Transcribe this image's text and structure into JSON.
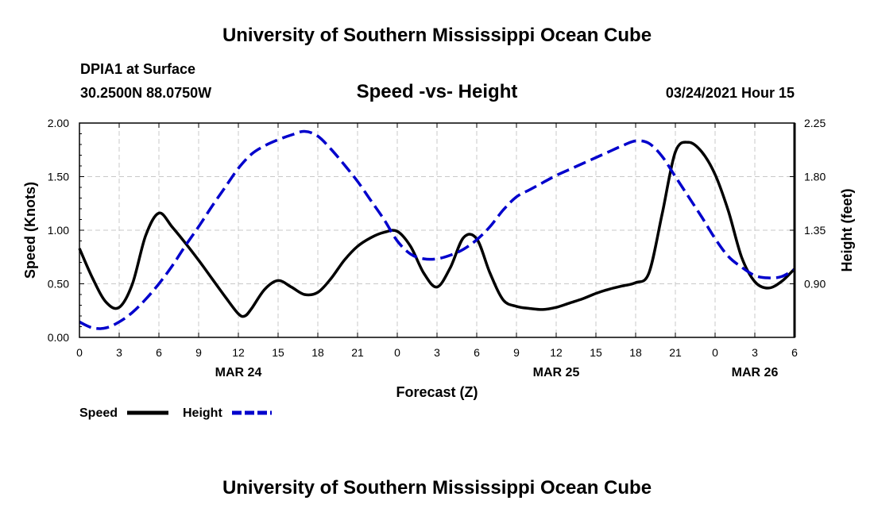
{
  "header": {
    "title": "University of Southern Mississippi Ocean Cube",
    "station": "DPIA1 at Surface",
    "coords": "30.2500N 88.0750W",
    "subtitle": "Speed -vs- Height",
    "datetime": "03/24/2021 Hour 15"
  },
  "footer": {
    "title": "University of Southern Mississippi Ocean Cube"
  },
  "colors": {
    "speed": "#000000",
    "height": "#0000cc",
    "grid": "#c8c8c8"
  },
  "chart_data": {
    "type": "line",
    "title": "Speed -vs- Height",
    "xlabel": "Forecast (Z)",
    "ylabel": "Speed (Knots)",
    "y2label": "Height (feet)",
    "x_range_hours": [
      0,
      54
    ],
    "x_ticks": [
      {
        "h": 0,
        "label": "0"
      },
      {
        "h": 3,
        "label": "3"
      },
      {
        "h": 6,
        "label": "6"
      },
      {
        "h": 9,
        "label": "9"
      },
      {
        "h": 12,
        "label": "12"
      },
      {
        "h": 15,
        "label": "15"
      },
      {
        "h": 18,
        "label": "18"
      },
      {
        "h": 21,
        "label": "21"
      },
      {
        "h": 24,
        "label": "0"
      },
      {
        "h": 27,
        "label": "3"
      },
      {
        "h": 30,
        "label": "6"
      },
      {
        "h": 33,
        "label": "9"
      },
      {
        "h": 36,
        "label": "12"
      },
      {
        "h": 39,
        "label": "15"
      },
      {
        "h": 42,
        "label": "18"
      },
      {
        "h": 45,
        "label": "21"
      },
      {
        "h": 48,
        "label": "0"
      },
      {
        "h": 51,
        "label": "3"
      },
      {
        "h": 54,
        "label": "6"
      }
    ],
    "date_labels": [
      {
        "h": 12,
        "label": "MAR 24"
      },
      {
        "h": 36,
        "label": "MAR 25"
      },
      {
        "h": 51,
        "label": "MAR 26"
      }
    ],
    "ylim": [
      0,
      2.0
    ],
    "y_ticks": [
      {
        "v": 0,
        "label": "0.00"
      },
      {
        "v": 0.5,
        "label": "0.50"
      },
      {
        "v": 1.0,
        "label": "1.00"
      },
      {
        "v": 1.5,
        "label": "1.50"
      },
      {
        "v": 2.0,
        "label": "2.00"
      }
    ],
    "y2lim": [
      0.45,
      2.25
    ],
    "y2_ticks": [
      {
        "v": 0.9,
        "label": "0.90"
      },
      {
        "v": 1.35,
        "label": "1.35"
      },
      {
        "v": 1.8,
        "label": "1.80"
      },
      {
        "v": 2.25,
        "label": "2.25"
      }
    ],
    "series": [
      {
        "name": "Speed",
        "axis": "left",
        "style": "solid",
        "x": [
          0,
          1,
          2,
          3,
          4,
          5,
          6,
          7,
          8,
          9,
          10,
          11,
          12,
          12.5,
          13,
          14,
          15,
          16,
          17,
          18,
          19,
          20,
          21,
          22,
          23,
          24,
          25,
          26,
          27,
          28,
          29,
          30,
          31,
          32,
          33,
          34,
          35,
          36,
          37,
          38,
          39,
          40,
          41,
          42,
          43,
          44,
          45,
          46,
          47,
          48,
          49,
          50,
          51,
          52,
          53,
          54
        ],
        "values": [
          0.83,
          0.55,
          0.33,
          0.28,
          0.5,
          0.95,
          1.16,
          1.03,
          0.88,
          0.72,
          0.55,
          0.38,
          0.22,
          0.2,
          0.27,
          0.45,
          0.53,
          0.47,
          0.4,
          0.42,
          0.55,
          0.72,
          0.85,
          0.93,
          0.98,
          0.99,
          0.85,
          0.6,
          0.47,
          0.65,
          0.93,
          0.92,
          0.6,
          0.35,
          0.29,
          0.27,
          0.26,
          0.28,
          0.32,
          0.36,
          0.41,
          0.45,
          0.48,
          0.51,
          0.6,
          1.15,
          1.73,
          1.82,
          1.73,
          1.52,
          1.18,
          0.75,
          0.52,
          0.46,
          0.52,
          0.64
        ]
      },
      {
        "name": "Height",
        "axis": "right",
        "style": "dashed",
        "x": [
          0,
          1,
          2,
          3,
          4,
          5,
          6,
          7,
          8,
          9,
          10,
          11,
          12,
          13,
          14,
          15,
          16,
          17,
          18,
          19,
          20,
          21,
          22,
          23,
          24,
          25,
          26,
          27,
          28,
          29,
          30,
          31,
          32,
          33,
          34,
          35,
          36,
          37,
          38,
          39,
          40,
          41,
          42,
          43,
          44,
          45,
          46,
          47,
          48,
          49,
          50,
          51,
          52,
          53,
          54
        ],
        "values": [
          0.58,
          0.53,
          0.53,
          0.58,
          0.66,
          0.77,
          0.9,
          1.05,
          1.22,
          1.38,
          1.55,
          1.71,
          1.87,
          1.99,
          2.06,
          2.11,
          2.15,
          2.18,
          2.14,
          2.03,
          1.9,
          1.76,
          1.6,
          1.44,
          1.26,
          1.15,
          1.11,
          1.11,
          1.14,
          1.19,
          1.27,
          1.38,
          1.52,
          1.63,
          1.69,
          1.75,
          1.81,
          1.86,
          1.91,
          1.96,
          2.01,
          2.06,
          2.1,
          2.08,
          1.97,
          1.8,
          1.63,
          1.46,
          1.28,
          1.13,
          1.04,
          0.97,
          0.95,
          0.96,
          1.02
        ]
      }
    ],
    "legend": [
      {
        "label": "Speed",
        "style": "solid"
      },
      {
        "label": "Height",
        "style": "dashed"
      }
    ]
  }
}
